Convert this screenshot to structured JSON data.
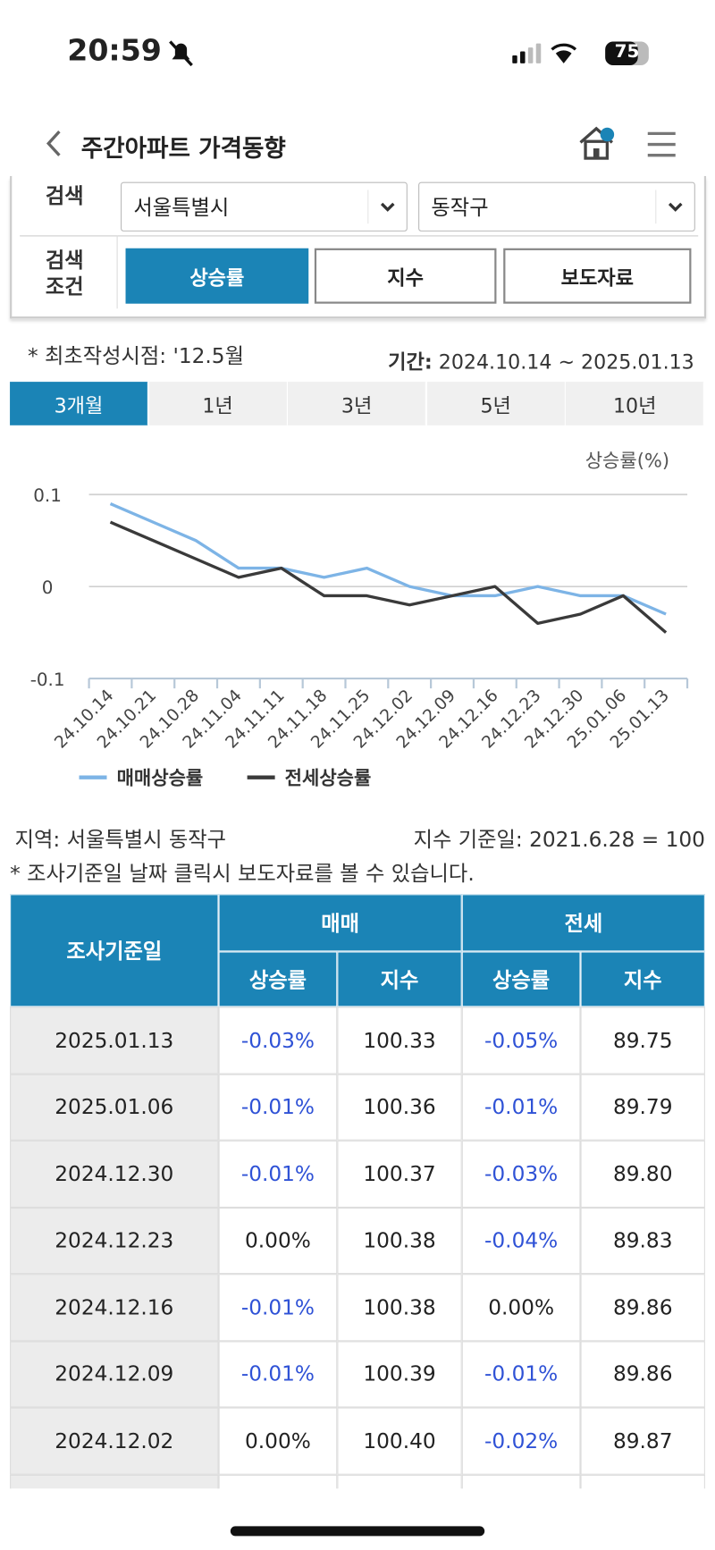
{
  "status_bar": {
    "time": "20:59",
    "battery": "75"
  },
  "header": {
    "title": "주간아파트 가격동향"
  },
  "search": {
    "label": "검색",
    "region": "서울특별시",
    "district": "동작구",
    "condition_label": [
      "검색",
      "조건"
    ],
    "buttons": [
      "상승률",
      "지수",
      "보도자료"
    ]
  },
  "info": {
    "created": "* 최초작성시점: '12.5월",
    "period_label": "기간:",
    "period": "2024.10.14 ~ 2025.01.13"
  },
  "tabs": [
    "3개월",
    "1년",
    "3년",
    "5년",
    "10년"
  ],
  "chart_data": {
    "type": "line",
    "ylabel": "상승률(%)",
    "categories": [
      "24.10.14",
      "24.10.21",
      "24.10.28",
      "24.11.04",
      "24.11.11",
      "24.11.18",
      "24.11.25",
      "24.12.02",
      "24.12.09",
      "24.12.16",
      "24.12.23",
      "24.12.30",
      "25.01.06",
      "25.01.13"
    ],
    "series": [
      {
        "name": "매매상승률",
        "color": "#7db4e6",
        "values": [
          0.09,
          0.07,
          0.05,
          0.02,
          0.02,
          0.01,
          0.02,
          0.0,
          -0.01,
          -0.01,
          0.0,
          -0.01,
          -0.01,
          -0.03
        ]
      },
      {
        "name": "전세상승률",
        "color": "#3a3a3a",
        "values": [
          0.07,
          0.05,
          0.03,
          0.01,
          0.02,
          -0.01,
          -0.01,
          -0.02,
          -0.01,
          0.0,
          -0.04,
          -0.03,
          -0.01,
          -0.05
        ]
      }
    ],
    "ylim": [
      -0.1,
      0.1
    ],
    "yticks": [
      0.1,
      0,
      -0.1
    ],
    "grid": true
  },
  "notes": {
    "region": "지역: 서울특별시 동작구",
    "base": "지수 기준일: 2021.6.28 = 100",
    "hint": "* 조사기준일 날짜 클릭시 보도자료를 볼 수 있습니다."
  },
  "table": {
    "header": {
      "date": "조사기준일",
      "groups": [
        "매매",
        "전세"
      ],
      "columns": [
        "상승률",
        "지수",
        "상승률",
        "지수"
      ]
    },
    "rows": [
      [
        "2025.01.13",
        "-0.03%",
        "100.33",
        "-0.05%",
        "89.75"
      ],
      [
        "2025.01.06",
        "-0.01%",
        "100.36",
        "-0.01%",
        "89.79"
      ],
      [
        "2024.12.30",
        "-0.01%",
        "100.37",
        "-0.03%",
        "89.80"
      ],
      [
        "2024.12.23",
        "0.00%",
        "100.38",
        "-0.04%",
        "89.83"
      ],
      [
        "2024.12.16",
        "-0.01%",
        "100.38",
        "0.00%",
        "89.86"
      ],
      [
        "2024.12.09",
        "-0.01%",
        "100.39",
        "-0.01%",
        "89.86"
      ],
      [
        "2024.12.02",
        "0.00%",
        "100.40",
        "-0.02%",
        "89.87"
      ]
    ]
  }
}
